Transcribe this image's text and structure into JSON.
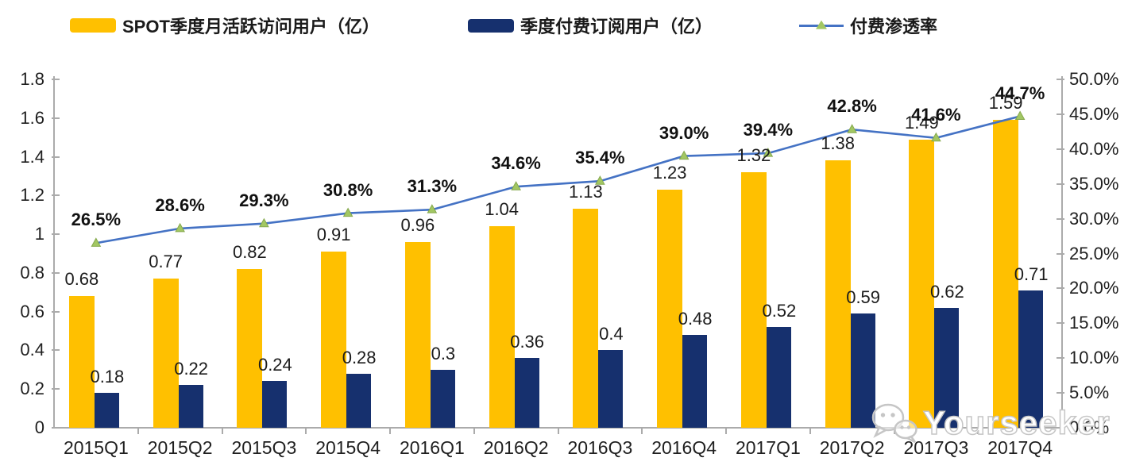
{
  "chart_data": {
    "type": "bar",
    "subtype": "grouped-bar-with-line",
    "categories": [
      "2015Q1",
      "2015Q2",
      "2015Q3",
      "2015Q4",
      "2016Q1",
      "2016Q2",
      "2016Q3",
      "2016Q4",
      "2017Q1",
      "2017Q2",
      "2017Q3",
      "2017Q4"
    ],
    "series": [
      {
        "name": "SPOT季度月活跃访问用户（亿）",
        "type": "bar",
        "axis": "left",
        "color": "#FFC000",
        "values": [
          0.68,
          0.77,
          0.82,
          0.91,
          0.96,
          1.04,
          1.13,
          1.23,
          1.32,
          1.38,
          1.49,
          1.59
        ]
      },
      {
        "name": "季度付费订阅用户（亿）",
        "type": "bar",
        "axis": "left",
        "color": "#16306E",
        "values": [
          0.18,
          0.22,
          0.24,
          0.28,
          0.3,
          0.36,
          0.4,
          0.48,
          0.52,
          0.59,
          0.62,
          0.71
        ]
      },
      {
        "name": "付费渗透率",
        "type": "line",
        "axis": "right",
        "color": "#4472C4",
        "marker": "triangle",
        "marker_color": "#A2C763",
        "marker_edge_color": "#86A94E",
        "unit": "%",
        "values": [
          26.5,
          28.6,
          29.3,
          30.8,
          31.3,
          34.6,
          35.4,
          39.0,
          39.4,
          42.8,
          41.6,
          44.7
        ]
      }
    ],
    "left_axis": {
      "min": 0,
      "max": 1.8,
      "tick_labels": [
        "1.8",
        "1.6",
        "1.4",
        "1.2",
        "1",
        "0.8",
        "0.6",
        "0.4",
        "0.2",
        "0"
      ]
    },
    "right_axis": {
      "min": 0,
      "max": 50,
      "tick_labels": [
        "50.0%",
        "45.0%",
        "40.0%",
        "35.0%",
        "30.0%",
        "25.0%",
        "20.0%",
        "15.0%",
        "10.0%",
        "5.0%",
        "0.0%"
      ]
    },
    "grid": false,
    "legend_position": "top",
    "axis_color": "#ababab",
    "label_color": "#1f1f1f"
  },
  "watermark": {
    "text": "Yourseeker",
    "icon": "wechat-icon"
  }
}
